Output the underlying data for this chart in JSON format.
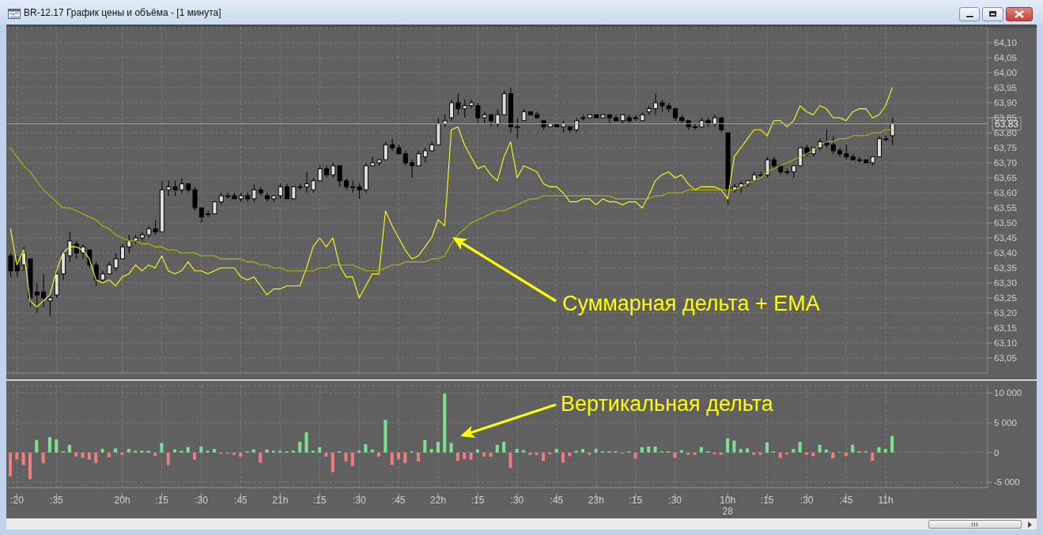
{
  "chart_data": [
    {
      "type": "candlestick",
      "title": "BR-12.17 График цены и объёма - [1 минута]",
      "categories": [
        null,
        ":20",
        null,
        null,
        null,
        null,
        null,
        ":35",
        null,
        null,
        null,
        null,
        null,
        null,
        null,
        null,
        null,
        "20h",
        null,
        null,
        null,
        null,
        null,
        ":15",
        null,
        null,
        null,
        null,
        null,
        ":30",
        null,
        null,
        null,
        null,
        null,
        ":45",
        null,
        null,
        null,
        null,
        null,
        "21h",
        null,
        null,
        null,
        null,
        null,
        ":15",
        null,
        null,
        null,
        null,
        null,
        ":30",
        null,
        null,
        null,
        null,
        null,
        ":45",
        null,
        null,
        null,
        null,
        null,
        "22h",
        null,
        null,
        null,
        null,
        null,
        ":15",
        null,
        null,
        null,
        null,
        null,
        ":30",
        null,
        null,
        null,
        null,
        null,
        ":45",
        null,
        null,
        null,
        null,
        null,
        "23h",
        null,
        null,
        null,
        null,
        null,
        ":15",
        null,
        null,
        null,
        null,
        null,
        ":30",
        null,
        null,
        null,
        null,
        null,
        null,
        null,
        "10h",
        null,
        null,
        null,
        null,
        null,
        ":15",
        null,
        null,
        null,
        null,
        null,
        ":30",
        null,
        null,
        null,
        null,
        null,
        ":45",
        null,
        null,
        null,
        null,
        null,
        "11h",
        null,
        null,
        null,
        null,
        null,
        null,
        null,
        null,
        null,
        null,
        null,
        null,
        null,
        null,
        null
      ],
      "ohlc": [
        [
          63.39,
          63.4,
          63.32,
          63.34
        ],
        [
          63.37,
          63.39,
          63.32,
          63.34
        ],
        [
          63.36,
          63.42,
          63.34,
          63.4
        ],
        [
          63.38,
          63.38,
          63.22,
          63.25
        ],
        [
          63.27,
          63.3,
          63.2,
          63.26
        ],
        [
          63.27,
          63.33,
          63.22,
          63.25
        ],
        [
          63.24,
          63.26,
          63.19,
          63.25
        ],
        [
          63.26,
          63.35,
          63.25,
          63.33
        ],
        [
          63.33,
          63.41,
          63.31,
          63.4
        ],
        [
          63.39,
          63.47,
          63.37,
          63.44
        ],
        [
          63.43,
          63.44,
          63.38,
          63.4
        ],
        [
          63.4,
          63.43,
          63.38,
          63.42
        ],
        [
          63.41,
          63.41,
          63.35,
          63.36
        ],
        [
          63.36,
          63.37,
          63.29,
          63.31
        ],
        [
          63.31,
          63.34,
          63.3,
          63.33
        ],
        [
          63.33,
          63.37,
          63.33,
          63.36
        ],
        [
          63.35,
          63.4,
          63.34,
          63.38
        ],
        [
          63.38,
          63.43,
          63.38,
          63.42
        ],
        [
          63.42,
          63.46,
          63.4,
          63.44
        ],
        [
          63.44,
          63.46,
          63.43,
          63.45
        ],
        [
          63.45,
          63.47,
          63.44,
          63.46
        ],
        [
          63.46,
          63.49,
          63.45,
          63.48
        ],
        [
          63.48,
          63.51,
          63.46,
          63.47
        ],
        [
          63.47,
          63.64,
          63.47,
          63.61
        ],
        [
          63.61,
          63.64,
          63.59,
          63.62
        ],
        [
          63.62,
          63.64,
          63.59,
          63.61
        ],
        [
          63.61,
          63.65,
          63.6,
          63.63
        ],
        [
          63.63,
          63.63,
          63.6,
          63.61
        ],
        [
          63.61,
          63.62,
          63.54,
          63.55
        ],
        [
          63.55,
          63.55,
          63.5,
          63.52
        ],
        [
          63.53,
          63.54,
          63.52,
          63.53
        ],
        [
          63.53,
          63.57,
          63.53,
          63.57
        ],
        [
          63.57,
          63.6,
          63.56,
          63.59
        ],
        [
          63.59,
          63.6,
          63.58,
          63.59
        ],
        [
          63.59,
          63.6,
          63.58,
          63.58
        ],
        [
          63.58,
          63.6,
          63.57,
          63.59
        ],
        [
          63.59,
          63.6,
          63.57,
          63.58
        ],
        [
          63.58,
          63.63,
          63.57,
          63.61
        ],
        [
          63.61,
          63.62,
          63.59,
          63.6
        ],
        [
          63.59,
          63.6,
          63.57,
          63.58
        ],
        [
          63.58,
          63.59,
          63.57,
          63.59
        ],
        [
          63.59,
          63.63,
          63.58,
          63.62
        ],
        [
          63.62,
          63.63,
          63.58,
          63.58
        ],
        [
          63.58,
          63.62,
          63.58,
          63.62
        ],
        [
          63.62,
          63.63,
          63.61,
          63.62
        ],
        [
          63.62,
          63.67,
          63.6,
          63.63
        ],
        [
          63.61,
          63.65,
          63.6,
          63.64
        ],
        [
          63.64,
          63.69,
          63.64,
          63.68
        ],
        [
          63.68,
          63.69,
          63.65,
          63.66
        ],
        [
          63.66,
          63.7,
          63.65,
          63.69
        ],
        [
          63.69,
          63.69,
          63.62,
          63.64
        ],
        [
          63.64,
          63.65,
          63.61,
          63.62
        ],
        [
          63.62,
          63.64,
          63.6,
          63.62
        ],
        [
          63.62,
          63.63,
          63.58,
          63.61
        ],
        [
          63.61,
          63.7,
          63.6,
          63.69
        ],
        [
          63.69,
          63.72,
          63.69,
          63.7
        ],
        [
          63.7,
          63.71,
          63.69,
          63.71
        ],
        [
          63.71,
          63.77,
          63.71,
          63.76
        ],
        [
          63.76,
          63.78,
          63.74,
          63.75
        ],
        [
          63.75,
          63.76,
          63.73,
          63.73
        ],
        [
          63.73,
          63.74,
          63.69,
          63.7
        ],
        [
          63.7,
          63.71,
          63.65,
          63.69
        ],
        [
          63.69,
          63.74,
          63.69,
          63.73
        ],
        [
          63.72,
          63.75,
          63.7,
          63.74
        ],
        [
          63.74,
          63.77,
          63.74,
          63.76
        ],
        [
          63.76,
          63.85,
          63.76,
          63.83
        ],
        [
          63.83,
          63.86,
          63.82,
          63.84
        ],
        [
          63.85,
          63.91,
          63.84,
          63.9
        ],
        [
          63.9,
          63.93,
          63.86,
          63.88
        ],
        [
          63.88,
          63.91,
          63.85,
          63.89
        ],
        [
          63.89,
          63.91,
          63.88,
          63.9
        ],
        [
          63.89,
          63.9,
          63.83,
          63.85
        ],
        [
          63.85,
          63.87,
          63.83,
          63.86
        ],
        [
          63.86,
          63.86,
          63.82,
          63.84
        ],
        [
          63.83,
          63.88,
          63.82,
          63.86
        ],
        [
          63.86,
          63.94,
          63.86,
          63.93
        ],
        [
          63.93,
          63.95,
          63.8,
          63.82
        ],
        [
          63.82,
          63.85,
          63.78,
          63.82
        ],
        [
          63.84,
          63.88,
          63.84,
          63.87
        ],
        [
          63.87,
          63.87,
          63.86,
          63.86
        ],
        [
          63.86,
          63.87,
          63.85,
          63.85
        ],
        [
          63.84,
          63.84,
          63.81,
          63.82
        ],
        [
          63.82,
          63.83,
          63.82,
          63.83
        ],
        [
          63.83,
          63.83,
          63.82,
          63.82
        ],
        [
          63.82,
          63.84,
          63.8,
          63.83
        ],
        [
          63.82,
          63.82,
          63.8,
          63.81
        ],
        [
          63.81,
          63.85,
          63.8,
          63.84
        ],
        [
          63.85,
          63.86,
          63.84,
          63.85
        ],
        [
          63.85,
          63.86,
          63.85,
          63.86
        ],
        [
          63.86,
          63.86,
          63.85,
          63.85
        ],
        [
          63.85,
          63.86,
          63.85,
          63.86
        ],
        [
          63.86,
          63.86,
          63.83,
          63.85
        ],
        [
          63.85,
          63.86,
          63.84,
          63.84
        ],
        [
          63.84,
          63.86,
          63.83,
          63.86
        ],
        [
          63.85,
          63.86,
          63.83,
          63.84
        ],
        [
          63.85,
          63.86,
          63.84,
          63.85
        ],
        [
          63.84,
          63.87,
          63.84,
          63.86
        ],
        [
          63.87,
          63.89,
          63.86,
          63.88
        ],
        [
          63.88,
          63.93,
          63.86,
          63.9
        ],
        [
          63.9,
          63.91,
          63.87,
          63.89
        ],
        [
          63.89,
          63.9,
          63.87,
          63.88
        ],
        [
          63.88,
          63.88,
          63.84,
          63.85
        ],
        [
          63.85,
          63.86,
          63.83,
          63.84
        ],
        [
          63.84,
          63.84,
          63.81,
          63.82
        ],
        [
          63.82,
          63.83,
          63.81,
          63.82
        ],
        [
          63.82,
          63.85,
          63.82,
          63.84
        ],
        [
          63.84,
          63.85,
          63.82,
          63.83
        ],
        [
          63.83,
          63.86,
          63.82,
          63.85
        ],
        [
          63.85,
          63.85,
          63.8,
          63.81
        ],
        [
          63.8,
          63.8,
          63.56,
          63.61
        ],
        [
          63.61,
          63.63,
          63.6,
          63.62
        ],
        [
          63.62,
          63.64,
          63.6,
          63.63
        ],
        [
          63.63,
          63.64,
          63.62,
          63.64
        ],
        [
          63.64,
          63.67,
          63.64,
          63.66
        ],
        [
          63.66,
          63.67,
          63.65,
          63.66
        ],
        [
          63.66,
          63.72,
          63.65,
          63.71
        ],
        [
          63.71,
          63.72,
          63.68,
          63.69
        ],
        [
          63.69,
          63.69,
          63.66,
          63.67
        ],
        [
          63.67,
          63.68,
          63.66,
          63.67
        ],
        [
          63.67,
          63.69,
          63.65,
          63.69
        ],
        [
          63.69,
          63.75,
          63.69,
          63.75
        ],
        [
          63.75,
          63.76,
          63.72,
          63.73
        ],
        [
          63.73,
          63.75,
          63.72,
          63.75
        ],
        [
          63.75,
          63.78,
          63.74,
          63.77
        ],
        [
          63.77,
          63.81,
          63.75,
          63.76
        ],
        [
          63.76,
          63.79,
          63.73,
          63.74
        ],
        [
          63.74,
          63.75,
          63.72,
          63.73
        ],
        [
          63.73,
          63.76,
          63.71,
          63.72
        ],
        [
          63.72,
          63.73,
          63.71,
          63.71
        ],
        [
          63.71,
          63.72,
          63.7,
          63.71
        ],
        [
          63.71,
          63.71,
          63.7,
          63.7
        ],
        [
          63.7,
          63.72,
          63.69,
          63.72
        ],
        [
          63.72,
          63.79,
          63.72,
          63.78
        ],
        [
          63.78,
          63.79,
          63.77,
          63.78
        ],
        [
          63.79,
          63.85,
          63.76,
          63.83
        ],
        null,
        null,
        null,
        null,
        null,
        null,
        null,
        null,
        null,
        null,
        null,
        null,
        null,
        null
      ],
      "series": [
        {
          "type": "line",
          "color": "#ffff1a",
          "values": [
            63.48,
            63.36,
            63.41,
            63.24,
            63.22,
            63.24,
            63.26,
            63.34,
            63.4,
            63.42,
            63.42,
            63.41,
            63.38,
            63.31,
            63.3,
            63.31,
            63.29,
            63.32,
            63.33,
            63.36,
            63.34,
            63.36,
            63.35,
            63.39,
            63.34,
            63.33,
            63.34,
            63.37,
            63.34,
            63.34,
            63.33,
            63.34,
            63.35,
            63.35,
            63.35,
            63.32,
            63.31,
            63.32,
            63.29,
            63.26,
            63.28,
            63.28,
            63.29,
            63.29,
            63.29,
            63.35,
            63.42,
            63.45,
            63.42,
            63.45,
            63.36,
            63.32,
            63.32,
            63.25,
            63.29,
            63.33,
            63.33,
            63.54,
            63.49,
            63.45,
            63.41,
            63.38,
            63.39,
            63.42,
            63.45,
            63.51,
            63.49,
            63.81,
            63.82,
            63.76,
            63.72,
            63.68,
            63.69,
            63.66,
            63.64,
            63.72,
            63.77,
            63.65,
            63.69,
            63.68,
            63.67,
            63.63,
            63.62,
            63.62,
            63.6,
            63.57,
            63.57,
            63.58,
            63.58,
            63.56,
            63.58,
            63.57,
            63.57,
            63.56,
            63.57,
            63.57,
            63.55,
            63.59,
            63.64,
            63.66,
            63.67,
            63.65,
            63.66,
            63.63,
            63.61,
            63.62,
            63.62,
            63.62,
            63.61,
            63.58,
            63.72,
            63.75,
            63.78,
            63.81,
            63.81,
            63.79,
            63.84,
            63.84,
            63.82,
            63.84,
            63.89,
            63.87,
            63.86,
            63.89,
            63.88,
            63.85,
            63.85,
            63.84,
            63.87,
            63.88,
            63.88,
            63.85,
            63.86,
            63.89,
            63.95,
            null,
            null,
            null,
            null,
            null,
            null,
            null,
            null,
            null,
            null,
            null,
            null,
            null,
            null
          ]
        },
        {
          "type": "line",
          "color": "#b8b800",
          "values": [
            63.75,
            63.72,
            63.69,
            63.67,
            63.64,
            63.61,
            63.59,
            63.57,
            63.55,
            63.55,
            63.54,
            63.53,
            63.52,
            63.51,
            63.49,
            63.48,
            63.46,
            63.45,
            63.44,
            63.44,
            63.43,
            63.43,
            63.42,
            63.42,
            63.41,
            63.41,
            63.4,
            63.4,
            63.4,
            63.39,
            63.39,
            63.39,
            63.38,
            63.38,
            63.38,
            63.38,
            63.37,
            63.37,
            63.36,
            63.36,
            63.35,
            63.35,
            63.34,
            63.34,
            63.34,
            63.34,
            63.34,
            63.35,
            63.35,
            63.36,
            63.36,
            63.36,
            63.36,
            63.35,
            63.34,
            63.34,
            63.34,
            63.35,
            63.36,
            63.36,
            63.37,
            63.37,
            63.37,
            63.37,
            63.38,
            63.38,
            63.39,
            63.43,
            63.46,
            63.48,
            63.5,
            63.51,
            63.52,
            63.53,
            63.54,
            63.54,
            63.55,
            63.56,
            63.57,
            63.58,
            63.58,
            63.59,
            63.59,
            63.59,
            63.59,
            63.59,
            63.59,
            63.59,
            63.59,
            63.59,
            63.59,
            63.59,
            63.58,
            63.58,
            63.58,
            63.58,
            63.58,
            63.58,
            63.59,
            63.59,
            63.6,
            63.6,
            63.6,
            63.61,
            63.61,
            63.61,
            63.61,
            63.61,
            63.61,
            63.61,
            63.61,
            63.62,
            63.63,
            63.64,
            63.65,
            63.67,
            63.68,
            63.69,
            63.7,
            63.71,
            63.72,
            63.73,
            63.74,
            63.76,
            63.77,
            63.77,
            63.78,
            63.78,
            63.79,
            63.79,
            63.79,
            63.8,
            63.8,
            63.81,
            63.81,
            null,
            null,
            null,
            null,
            null,
            null,
            null,
            null,
            null,
            null,
            null,
            null,
            null,
            null
          ]
        }
      ],
      "ylim": [
        63.0,
        64.15
      ],
      "yticks": [
        {
          "value": 63.05,
          "label": "63,05"
        },
        {
          "value": 63.1,
          "label": "63,10"
        },
        {
          "value": 63.15,
          "label": "63,15"
        },
        {
          "value": 63.2,
          "label": "63,20"
        },
        {
          "value": 63.25,
          "label": "63,25"
        },
        {
          "value": 63.3,
          "label": "63,30"
        },
        {
          "value": 63.35,
          "label": "63,35"
        },
        {
          "value": 63.4,
          "label": "63,40"
        },
        {
          "value": 63.45,
          "label": "63,45"
        },
        {
          "value": 63.5,
          "label": "63,50"
        },
        {
          "value": 63.55,
          "label": "63,55"
        },
        {
          "value": 63.6,
          "label": "63,60"
        },
        {
          "value": 63.65,
          "label": "63,65"
        },
        {
          "value": 63.7,
          "label": "63,70"
        },
        {
          "value": 63.75,
          "label": "63,75"
        },
        {
          "value": 63.8,
          "label": "63,80"
        },
        {
          "value": 63.85,
          "label": "63,85"
        },
        {
          "value": 63.9,
          "label": "63,90"
        },
        {
          "value": 63.95,
          "label": "63,95"
        },
        {
          "value": 64.0,
          "label": "64,00"
        },
        {
          "value": 64.05,
          "label": "64,05"
        },
        {
          "value": 64.1,
          "label": "64,10"
        }
      ],
      "grid": true,
      "tick_labels": "y",
      "ref_lines": [
        {
          "axis": "y",
          "value": 63.83,
          "label": "63,83",
          "color": "#a0a0a0"
        }
      ],
      "annotations": [
        "Суммарная дельта + EMA"
      ]
    },
    {
      "type": "bar",
      "categories": [
        null,
        ":20",
        null,
        null,
        null,
        null,
        null,
        ":35",
        null,
        null,
        null,
        null,
        null,
        null,
        null,
        null,
        null,
        "20h",
        null,
        null,
        null,
        null,
        null,
        ":15",
        null,
        null,
        null,
        null,
        null,
        ":30",
        null,
        null,
        null,
        null,
        null,
        ":45",
        null,
        null,
        null,
        null,
        null,
        "21h",
        null,
        null,
        null,
        null,
        null,
        ":15",
        null,
        null,
        null,
        null,
        null,
        ":30",
        null,
        null,
        null,
        null,
        null,
        ":45",
        null,
        null,
        null,
        null,
        null,
        "22h",
        null,
        null,
        null,
        null,
        null,
        ":15",
        null,
        null,
        null,
        null,
        null,
        ":30",
        null,
        null,
        null,
        null,
        null,
        ":45",
        null,
        null,
        null,
        null,
        null,
        "23h",
        null,
        null,
        null,
        null,
        null,
        ":15",
        null,
        null,
        null,
        null,
        null,
        ":30",
        null,
        null,
        null,
        null,
        null,
        null,
        null,
        "10h",
        null,
        null,
        null,
        null,
        null,
        ":15",
        null,
        null,
        null,
        null,
        null,
        ":30",
        null,
        null,
        null,
        null,
        null,
        ":45",
        null,
        null,
        null,
        null,
        null,
        "11h",
        null,
        null,
        null,
        null,
        null,
        null,
        null,
        null,
        null,
        null,
        null,
        null,
        null,
        null,
        null
      ],
      "values": [
        -4000,
        -1200,
        -2100,
        -4500,
        2100,
        -1800,
        2600,
        2200,
        200,
        1300,
        -700,
        -900,
        -1200,
        -1800,
        600,
        -800,
        700,
        -400,
        600,
        300,
        300,
        300,
        -600,
        1600,
        -2100,
        500,
        300,
        900,
        -1200,
        1000,
        300,
        600,
        -200,
        -200,
        -400,
        -700,
        200,
        500,
        -1700,
        500,
        300,
        300,
        200,
        300,
        1800,
        3400,
        300,
        900,
        -700,
        -3300,
        200,
        -1500,
        -2300,
        300,
        1400,
        500,
        -700,
        5500,
        -2100,
        -1200,
        -1800,
        200,
        -1500,
        2100,
        600,
        1800,
        9900,
        1600,
        -1400,
        -1100,
        -1200,
        500,
        -700,
        -700,
        1300,
        1800,
        -2600,
        600,
        400,
        -400,
        -400,
        -1400,
        -300,
        600,
        -1700,
        -600,
        300,
        600,
        -400,
        600,
        200,
        200,
        200,
        -200,
        200,
        -1000,
        900,
        1000,
        1000,
        200,
        200,
        -900,
        400,
        -400,
        -400,
        900,
        200,
        -300,
        -400,
        2400,
        2000,
        600,
        700,
        -400,
        -400,
        1700,
        200,
        -900,
        -300,
        600,
        1800,
        -400,
        -600,
        1300,
        500,
        -1000,
        100,
        -600,
        1300,
        200,
        200,
        -1400,
        900,
        600,
        2800,
        null,
        null,
        null,
        null,
        null,
        null,
        null,
        null,
        null,
        null,
        null,
        null,
        null,
        null
      ],
      "colors": [
        "#f27c7c",
        "#f27c7c",
        "#f27c7c",
        "#f27c7c",
        "#7be38f",
        "#f27c7c",
        "#7be38f",
        "#7be38f",
        "#7be38f",
        "#7be38f",
        "#f27c7c",
        "#f27c7c",
        "#f27c7c",
        "#f27c7c",
        "#7be38f",
        "#f27c7c",
        "#7be38f",
        "#f27c7c",
        "#7be38f",
        "#7be38f",
        "#7be38f",
        "#7be38f",
        "#f27c7c",
        "#7be38f",
        "#f27c7c",
        "#7be38f",
        "#7be38f",
        "#7be38f",
        "#f27c7c",
        "#7be38f",
        "#7be38f",
        "#7be38f",
        "#f27c7c",
        "#f27c7c",
        "#f27c7c",
        "#f27c7c",
        "#7be38f",
        "#7be38f",
        "#f27c7c",
        "#7be38f",
        "#7be38f",
        "#7be38f",
        "#7be38f",
        "#7be38f",
        "#7be38f",
        "#7be38f",
        "#7be38f",
        "#7be38f",
        "#f27c7c",
        "#f27c7c",
        "#7be38f",
        "#f27c7c",
        "#f27c7c",
        "#7be38f",
        "#7be38f",
        "#7be38f",
        "#f27c7c",
        "#7be38f",
        "#f27c7c",
        "#f27c7c",
        "#f27c7c",
        "#7be38f",
        "#f27c7c",
        "#7be38f",
        "#7be38f",
        "#7be38f",
        "#7be38f",
        "#7be38f",
        "#f27c7c",
        "#f27c7c",
        "#f27c7c",
        "#7be38f",
        "#f27c7c",
        "#f27c7c",
        "#7be38f",
        "#7be38f",
        "#f27c7c",
        "#7be38f",
        "#7be38f",
        "#f27c7c",
        "#f27c7c",
        "#f27c7c",
        "#f27c7c",
        "#7be38f",
        "#f27c7c",
        "#f27c7c",
        "#7be38f",
        "#7be38f",
        "#f27c7c",
        "#7be38f",
        "#7be38f",
        "#7be38f",
        "#7be38f",
        "#f27c7c",
        "#7be38f",
        "#f27c7c",
        "#7be38f",
        "#7be38f",
        "#7be38f",
        "#7be38f",
        "#7be38f",
        "#f27c7c",
        "#7be38f",
        "#f27c7c",
        "#f27c7c",
        "#7be38f",
        "#7be38f",
        "#f27c7c",
        "#f27c7c",
        "#7be38f",
        "#7be38f",
        "#7be38f",
        "#7be38f",
        "#f27c7c",
        "#f27c7c",
        "#7be38f",
        "#7be38f",
        "#f27c7c",
        "#f27c7c",
        "#7be38f",
        "#7be38f",
        "#f27c7c",
        "#f27c7c",
        "#7be38f",
        "#7be38f",
        "#f27c7c",
        "#7be38f",
        "#f27c7c",
        "#7be38f",
        "#7be38f",
        "#7be38f",
        "#f27c7c",
        "#7be38f",
        "#7be38f",
        "#7be38f",
        null,
        null,
        null,
        null,
        null,
        null,
        null,
        null,
        null,
        null,
        null,
        null,
        null,
        null
      ],
      "ylim": [
        -5900,
        11250
      ],
      "yticks": [
        {
          "value": -5000,
          "label": "-5 000"
        },
        0,
        {
          "value": 5000,
          "label": "5 000"
        },
        {
          "value": 10000,
          "label": "10 000"
        }
      ],
      "grid": true,
      "annotations": [
        "Вертикальная дельта",
        {
          "text": "28",
          "x": "10h"
        }
      ]
    }
  ]
}
